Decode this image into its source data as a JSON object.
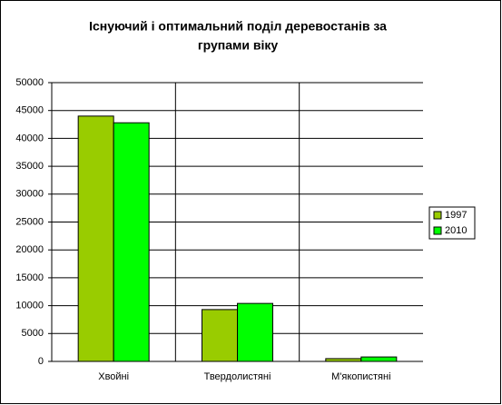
{
  "chart_data": {
    "type": "bar",
    "title": [
      "Існуючий і оптимальний поділ деревостанів за",
      "групами віку"
    ],
    "categories": [
      "Хвойні",
      "Твердолистяні",
      "М'якопистяні"
    ],
    "series": [
      {
        "name": "1997",
        "color": "#99cc00",
        "values": [
          44000,
          9300,
          500
        ]
      },
      {
        "name": "2010",
        "color": "#00ff00",
        "values": [
          42800,
          10400,
          800
        ]
      }
    ],
    "ylim": [
      0,
      50000
    ],
    "yticks": [
      0,
      5000,
      10000,
      15000,
      20000,
      25000,
      30000,
      35000,
      40000,
      45000,
      50000
    ],
    "grid": true,
    "legend": "right"
  }
}
